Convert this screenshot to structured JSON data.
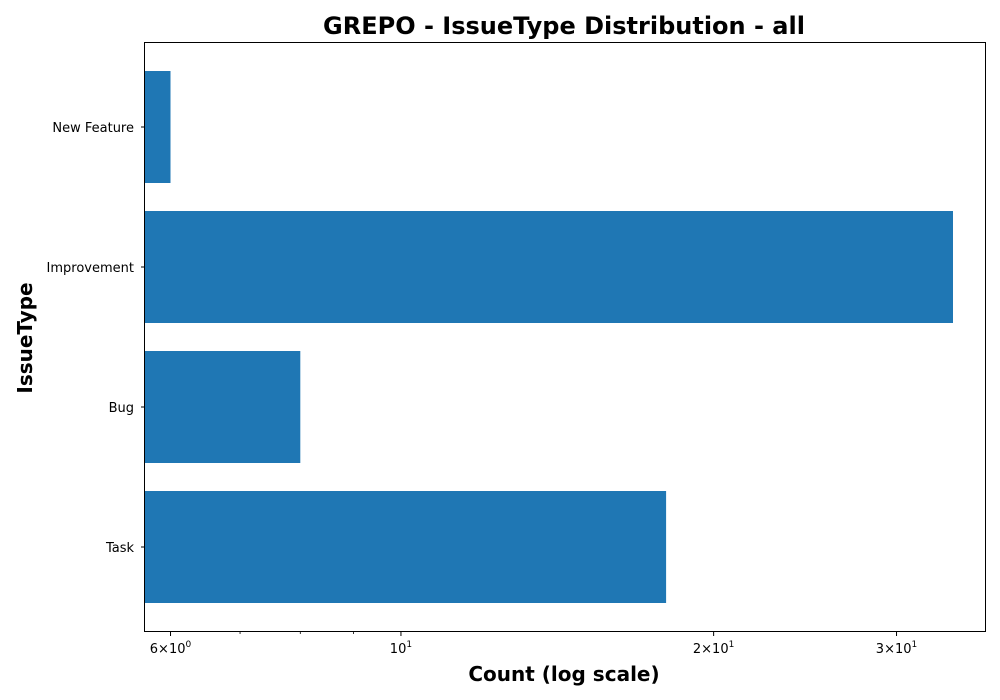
{
  "chart_data": {
    "type": "bar",
    "orientation": "horizontal",
    "title": "GREPO - IssueType Distribution - all",
    "xlabel": "Count (log scale)",
    "ylabel": "IssueType",
    "x_scale": "log",
    "xlim": [
      5.67,
      36.5
    ],
    "grid": false,
    "categories": [
      "New Feature",
      "Improvement",
      "Bug",
      "Task"
    ],
    "values": [
      6,
      34,
      8,
      18
    ],
    "bar_color": "#1f77b4",
    "x_ticks": [
      {
        "value": 6,
        "mantissa": "6",
        "base": "10",
        "exp": "0"
      },
      {
        "value": 10,
        "mantissa": "",
        "base": "10",
        "exp": "1"
      },
      {
        "value": 20,
        "mantissa": "2",
        "base": "10",
        "exp": "1"
      },
      {
        "value": 30,
        "mantissa": "3",
        "base": "10",
        "exp": "1"
      }
    ],
    "minor_x_ticks": [
      7,
      8,
      9
    ]
  }
}
